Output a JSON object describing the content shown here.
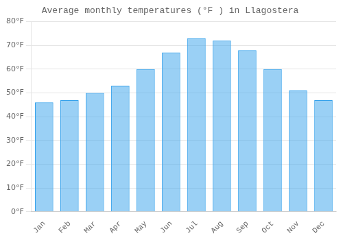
{
  "chart_data": {
    "type": "bar",
    "title": "Average monthly temperatures (°F ) in Llagostera",
    "categories": [
      "Jan",
      "Feb",
      "Mar",
      "Apr",
      "May",
      "Jun",
      "Jul",
      "Aug",
      "Sep",
      "Oct",
      "Nov",
      "Dec"
    ],
    "values": [
      46,
      47,
      50,
      53,
      60,
      67,
      73,
      72,
      68,
      60,
      51,
      47
    ],
    "ylim": [
      0,
      80
    ],
    "yticks": [
      {
        "value": 0,
        "label": "0°F"
      },
      {
        "value": 10,
        "label": "10°F"
      },
      {
        "value": 20,
        "label": "20°F"
      },
      {
        "value": 30,
        "label": "30°F"
      },
      {
        "value": 40,
        "label": "40°F"
      },
      {
        "value": 50,
        "label": "50°F"
      },
      {
        "value": 60,
        "label": "60°F"
      },
      {
        "value": 70,
        "label": "70°F"
      },
      {
        "value": 80,
        "label": "80°F"
      }
    ],
    "grid": true
  }
}
